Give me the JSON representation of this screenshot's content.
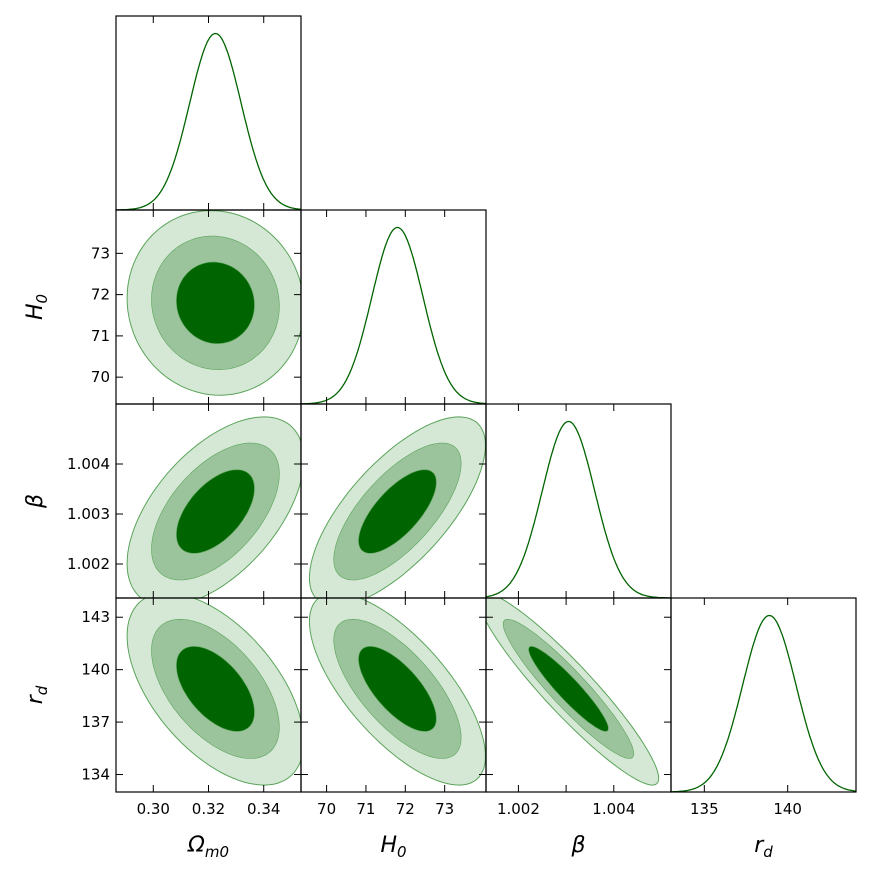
{
  "chart_data": {
    "type": "corner",
    "colors": {
      "line": "#006400",
      "fill_1sigma": "#006400",
      "fill_2sigma": "#9cc49c",
      "fill_3sigma": "#d5e7d5",
      "contour_edge": "#5aa45a",
      "frame": "#000000"
    },
    "parameters": [
      {
        "name": "Omega_m0",
        "label": "Ω",
        "label_sub": "m0",
        "range": [
          0.2865,
          0.3535
        ],
        "ticks": [
          0.3,
          0.32,
          0.34
        ],
        "tick_labels": [
          "0.30",
          "0.32",
          "0.34"
        ],
        "mean": 0.3225,
        "sigma": 0.0093
      },
      {
        "name": "H0",
        "label": "H",
        "label_sub": "0",
        "range": [
          69.35,
          74.05
        ],
        "ticks": [
          70,
          71,
          72,
          73
        ],
        "tick_labels": [
          "70",
          "71",
          "72",
          "73"
        ],
        "mean": 71.8,
        "sigma": 0.65
      },
      {
        "name": "beta",
        "label": "β",
        "label_sub": "",
        "range": [
          1.00132,
          1.0052
        ],
        "ticks": [
          1.002,
          1.003,
          1.004
        ],
        "tick_labels": [
          "1.002",
          "1.003",
          "1.004"
        ],
        "tick_labels_x": [
          "1.002",
          "",
          "1.004"
        ],
        "mean": 1.00305,
        "sigma": 0.00055
      },
      {
        "name": "r_d",
        "label": "r",
        "label_sub": "d",
        "range": [
          133.0,
          144.1
        ],
        "ticks": [
          134,
          137,
          140,
          143
        ],
        "tick_labels": [
          "134",
          "137",
          "140",
          "143"
        ],
        "ticks_x": [
          135,
          140
        ],
        "tick_labels_x": [
          "135",
          "140"
        ],
        "mean": 138.9,
        "sigma": 1.6
      }
    ],
    "correlations": [
      {
        "x": 0,
        "y": 1,
        "rho": -0.05
      },
      {
        "x": 0,
        "y": 2,
        "rho": 0.55
      },
      {
        "x": 1,
        "y": 2,
        "rho": 0.7
      },
      {
        "x": 0,
        "y": 3,
        "rho": -0.55
      },
      {
        "x": 1,
        "y": 3,
        "rho": -0.7
      },
      {
        "x": 2,
        "y": 3,
        "rho": -0.93
      }
    ],
    "contour_levels_chi": [
      1.52,
      2.49,
      3.44
    ]
  }
}
